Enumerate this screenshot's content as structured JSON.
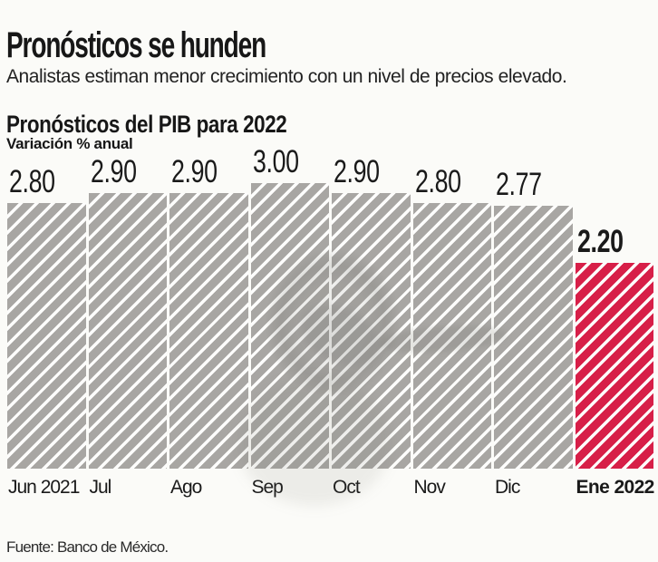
{
  "header": {
    "title": "Pronósticos se hunden",
    "subtitle": "Analistas estiman menor crecimiento con un nivel de precios elevado.",
    "chart_title": "Pronósticos del PIB para 2022",
    "chart_unit": "Variación % anual"
  },
  "footer": {
    "source": "Fuente: Banco de México."
  },
  "colors": {
    "background": "#fbfbf8",
    "text": "#171717",
    "bar_gray": "#a8a6a3",
    "bar_red": "#d71f48",
    "hatch": "rgba(255,255,255,0.5)",
    "hatch_red": "rgba(255,255,255,0.48)"
  },
  "chart_data": {
    "type": "bar",
    "title": "Pronósticos del PIB para 2022",
    "ylabel": "Variación % anual",
    "xlabel": "",
    "categories": [
      "Jun 2021",
      "Jul",
      "Ago",
      "Sep",
      "Oct",
      "Nov",
      "Dic",
      "Ene 2022"
    ],
    "values": [
      2.8,
      2.9,
      2.9,
      3.0,
      2.9,
      2.8,
      2.77,
      2.2
    ],
    "value_labels": [
      "2.80",
      "2.90",
      "2.90",
      "3.00",
      "2.90",
      "2.80",
      "2.77",
      "2.20"
    ],
    "highlight_index": 7,
    "highlight_color": "#d71f48",
    "bar_color": "#a8a6a3",
    "hatch_pattern": "diagonal",
    "ylim": [
      0.14,
      3.0
    ],
    "grid": false,
    "legend": false,
    "data_labels": true,
    "source": "Fuente: Banco de México."
  }
}
